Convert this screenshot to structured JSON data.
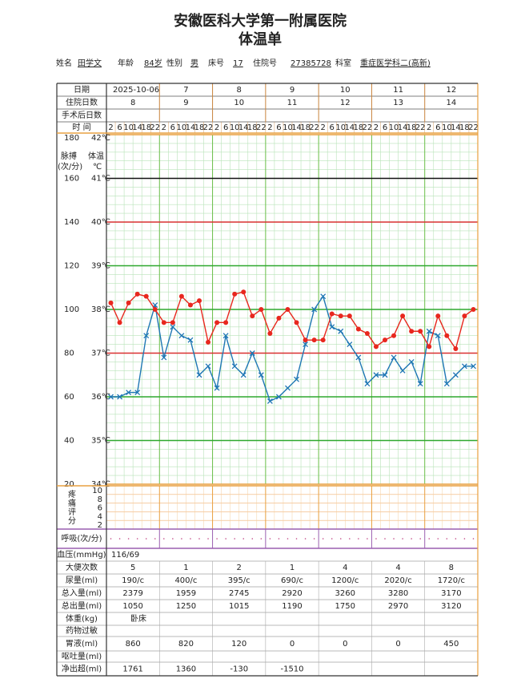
{
  "header": {
    "hospital": "安徽医科大学第一附属医院",
    "form": "体温单"
  },
  "patient": [
    {
      "label": "姓名",
      "value": "田学文"
    },
    {
      "label": "年龄",
      "value": "84岁"
    },
    {
      "label": "性别",
      "value": "男"
    },
    {
      "label": "床号",
      "value": "17"
    },
    {
      "label": "住院号",
      "value": "27385728"
    },
    {
      "label": "科室",
      "value": "重症医学科二(高新)"
    }
  ],
  "header_rows": [
    {
      "label": "日期",
      "cells": [
        "2025-10-06",
        "7",
        "8",
        "9",
        "10",
        "11",
        "12"
      ]
    },
    {
      "label": "住院日数",
      "cells": [
        "8",
        "9",
        "10",
        "11",
        "12",
        "13",
        "14"
      ]
    },
    {
      "label": "手术后日数",
      "cells": []
    }
  ],
  "time_label": "时 间",
  "axis_titles": {
    "pulse": "脉搏",
    "pulse_unit": "(次/分)",
    "temp": "体温",
    "temp_unit": "℃"
  },
  "chart_data": {
    "type": "line",
    "categories": [
      2,
      6,
      10,
      14,
      18,
      22,
      2,
      6,
      10,
      14,
      18,
      22,
      2,
      6,
      10,
      14,
      18,
      22,
      2,
      6,
      10,
      14,
      18,
      22,
      2,
      6,
      10,
      14,
      18,
      22,
      2,
      6,
      10,
      14,
      18,
      22,
      2,
      6,
      10,
      14,
      18,
      22
    ],
    "ylim": [
      34,
      42
    ],
    "yticks": [
      {
        "value": 34,
        "label": "34℃"
      },
      {
        "value": 35,
        "label": "35℃"
      },
      {
        "value": 36,
        "label": "36℃"
      },
      {
        "value": 37,
        "label": "37℃"
      },
      {
        "value": 38,
        "label": "38℃"
      },
      {
        "value": 39,
        "label": "39℃"
      },
      {
        "value": 40,
        "label": "40℃"
      },
      {
        "value": 41,
        "label": "41℃"
      },
      {
        "value": 42,
        "label": "42℃"
      }
    ],
    "ytick_colors": [
      "#e8a040",
      "#2ea82e",
      "#2ea82e",
      "#d93030",
      "#2ea82e",
      "#2ea82e",
      "#d93030",
      "#111111",
      "#e8a040"
    ],
    "y2lim": [
      20,
      180
    ],
    "y2ticks": [
      20,
      40,
      60,
      80,
      100,
      120,
      140,
      160,
      180
    ],
    "series": [
      {
        "color": "#1f77b4",
        "marker": "x",
        "values": [
          36.0,
          36.0,
          36.1,
          36.1,
          37.4,
          38.1,
          36.9,
          37.6,
          37.4,
          37.3,
          36.5,
          36.7,
          36.2,
          37.4,
          36.7,
          36.5,
          37.0,
          36.5,
          35.9,
          36.0,
          36.2,
          36.4,
          37.2,
          38.0,
          38.3,
          37.6,
          37.5,
          37.2,
          36.9,
          36.3,
          36.5,
          36.5,
          36.9,
          36.6,
          36.8,
          36.3,
          37.5,
          37.4,
          36.3,
          36.5,
          36.7,
          36.7
        ]
      },
      {
        "color": "#e8271e",
        "marker": "o",
        "axis": "y2",
        "values": [
          103,
          94,
          103,
          107,
          106,
          100,
          94,
          94,
          106,
          102,
          104,
          85,
          94,
          94,
          107,
          108,
          97,
          100,
          89,
          96,
          100,
          94,
          86,
          86,
          86,
          98,
          97,
          97,
          91,
          89,
          83,
          86,
          88,
          97,
          90,
          90,
          83,
          97,
          88,
          82,
          97,
          100
        ]
      }
    ]
  },
  "pain_score": {
    "label": "疼痛评分",
    "ticks": [
      10,
      8,
      6,
      4,
      2
    ]
  },
  "respiration": {
    "label": "呼吸(次/分)"
  },
  "records": [
    {
      "label": "血压(mmHg)",
      "cells": [
        "116/69"
      ]
    },
    {
      "label": "大便次数",
      "cells": [
        "5",
        "1",
        "2",
        "1",
        "4",
        "4",
        "8"
      ]
    },
    {
      "label": "尿量(ml)",
      "cells": [
        "190/c",
        "400/c",
        "395/c",
        "690/c",
        "1200/c",
        "2020/c",
        "1720/c"
      ]
    },
    {
      "label": "总入量(ml)",
      "cells": [
        "2379",
        "1959",
        "2745",
        "2920",
        "3260",
        "3280",
        "3170"
      ]
    },
    {
      "label": "总出量(ml)",
      "cells": [
        "1050",
        "1250",
        "1015",
        "1190",
        "1750",
        "2970",
        "3120"
      ]
    },
    {
      "label": "体重(kg)",
      "cells": [
        "卧床"
      ]
    },
    {
      "label": "药物过敏",
      "cells": []
    },
    {
      "label": "胃液(ml)",
      "cells": [
        "860",
        "820",
        "120",
        "0",
        "0",
        "0",
        "450"
      ]
    },
    {
      "label": "呕吐量(ml)",
      "cells": []
    },
    {
      "label": "净出超(ml)",
      "cells": [
        "1761",
        "1360",
        "-130",
        "-1510"
      ]
    }
  ]
}
